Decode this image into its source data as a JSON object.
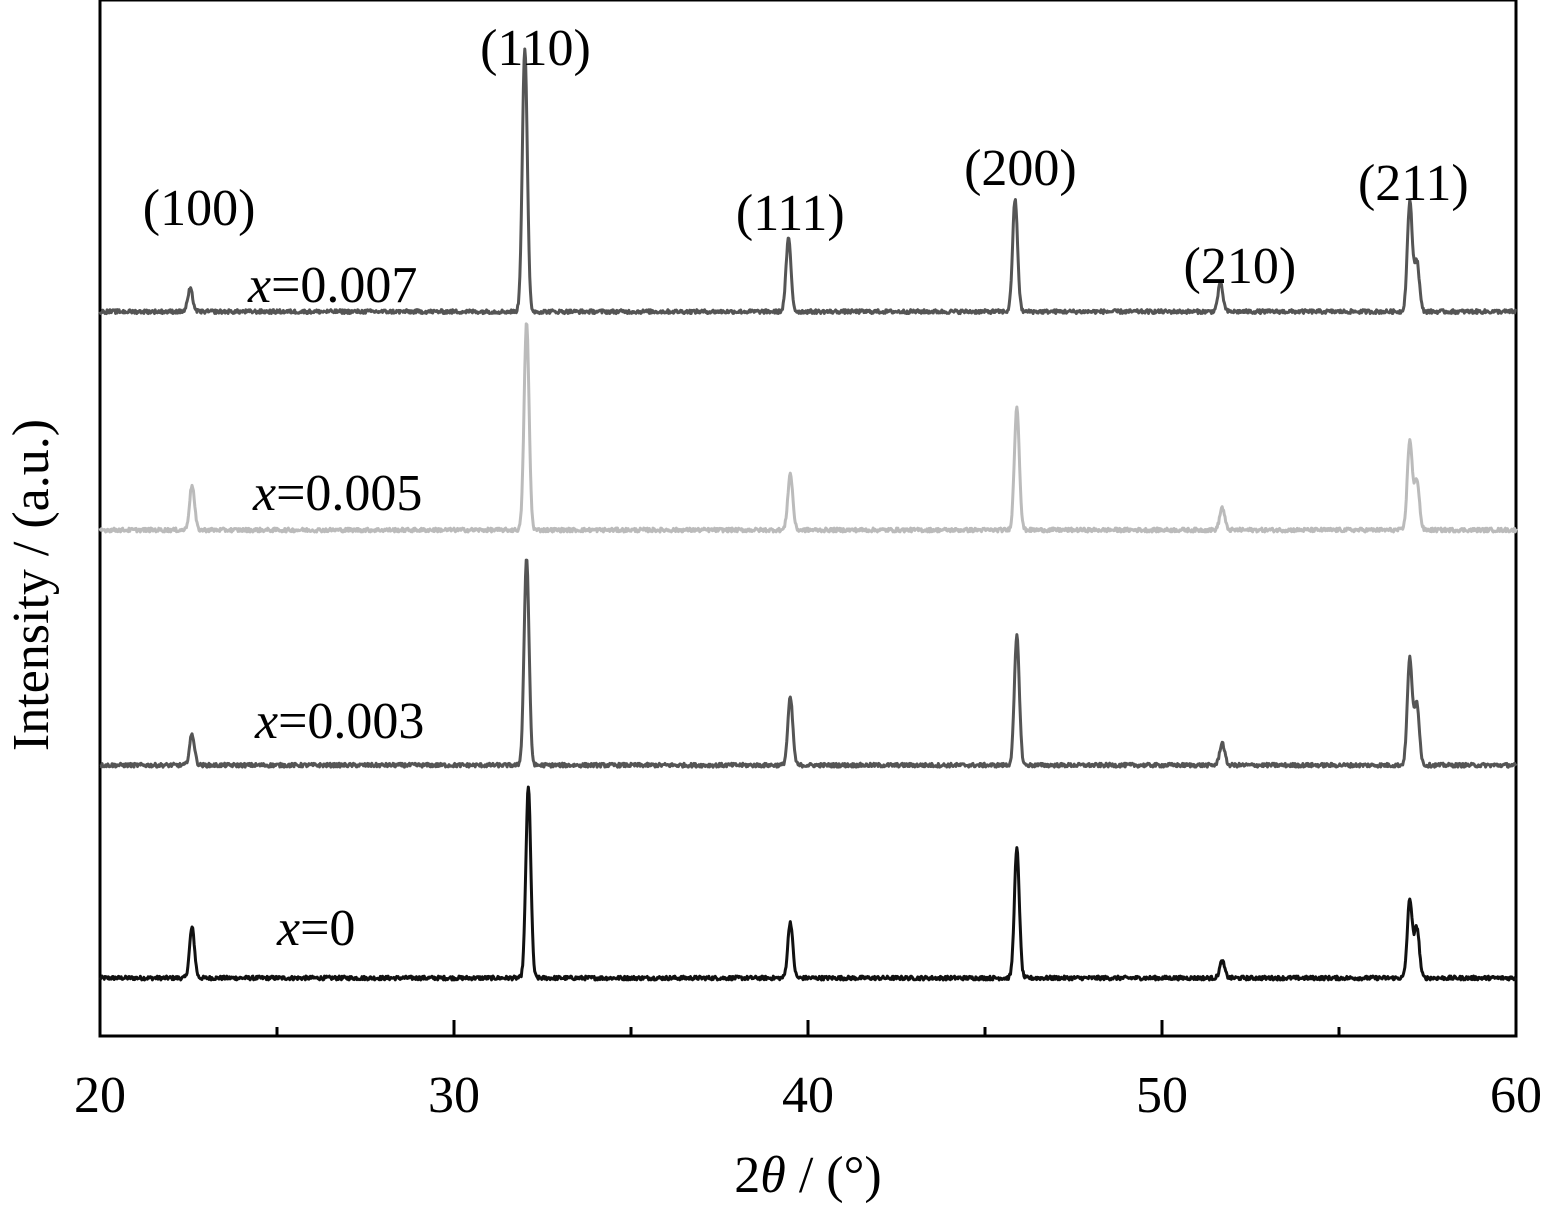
{
  "chart_data": {
    "type": "line",
    "xlabel_prefix": "2",
    "xlabel_symbol": "θ",
    "xlabel_suffix": " / (°)",
    "ylabel": "Intensity / (a.u.)",
    "xlim": [
      20,
      60
    ],
    "xticks": [
      20,
      30,
      40,
      50,
      60
    ],
    "xticks_minor": [
      25,
      35,
      45,
      55
    ],
    "y_ticks_shown": false,
    "grid": false,
    "legend": "inline labels",
    "peak_labels": [
      {
        "text": "(100)",
        "x": 22.8
      },
      {
        "text": "(110)",
        "x": 32.3
      },
      {
        "text": "(111)",
        "x": 39.5
      },
      {
        "text": "(200)",
        "x": 46.0
      },
      {
        "text": "(210)",
        "x": 52.2
      },
      {
        "text": "(211)",
        "x": 57.1
      }
    ],
    "series": [
      {
        "name": "x=0",
        "var": "x",
        "value": "=0",
        "color": "#111111",
        "baseline": 0.0,
        "peaks": [
          {
            "x": 22.6,
            "h": 0.9
          },
          {
            "x": 32.1,
            "h": 3.4
          },
          {
            "x": 39.5,
            "h": 1.0
          },
          {
            "x": 45.9,
            "h": 2.3
          },
          {
            "x": 51.7,
            "h": 0.3
          },
          {
            "x": 57.0,
            "h": 1.4
          },
          {
            "x": 57.2,
            "h": 0.9
          }
        ]
      },
      {
        "name": "x=0.003",
        "var": "x",
        "value": "=0.003",
        "color": "#555555",
        "baseline": 3.8,
        "peaks": [
          {
            "x": 22.6,
            "h": 0.55
          },
          {
            "x": 32.05,
            "h": 3.7
          },
          {
            "x": 39.5,
            "h": 1.2
          },
          {
            "x": 45.9,
            "h": 2.3
          },
          {
            "x": 51.7,
            "h": 0.4
          },
          {
            "x": 57.0,
            "h": 1.9
          },
          {
            "x": 57.2,
            "h": 1.1
          }
        ]
      },
      {
        "name": "x=0.005",
        "var": "x",
        "value": "=0.005",
        "color": "#bbbbbb",
        "baseline": 8.0,
        "peaks": [
          {
            "x": 22.6,
            "h": 0.8
          },
          {
            "x": 32.05,
            "h": 3.7
          },
          {
            "x": 39.5,
            "h": 1.0
          },
          {
            "x": 45.9,
            "h": 2.2
          },
          {
            "x": 51.7,
            "h": 0.4
          },
          {
            "x": 57.0,
            "h": 1.6
          },
          {
            "x": 57.2,
            "h": 0.9
          }
        ]
      },
      {
        "name": "x=0.007",
        "var": "x",
        "value": "=0.007",
        "color": "#555555",
        "baseline": 11.9,
        "peaks": [
          {
            "x": 22.55,
            "h": 0.4
          },
          {
            "x": 32.0,
            "h": 4.7
          },
          {
            "x": 39.45,
            "h": 1.3
          },
          {
            "x": 45.85,
            "h": 2.0
          },
          {
            "x": 51.65,
            "h": 0.5
          },
          {
            "x": 57.0,
            "h": 1.95
          },
          {
            "x": 57.2,
            "h": 0.9
          }
        ]
      }
    ]
  }
}
